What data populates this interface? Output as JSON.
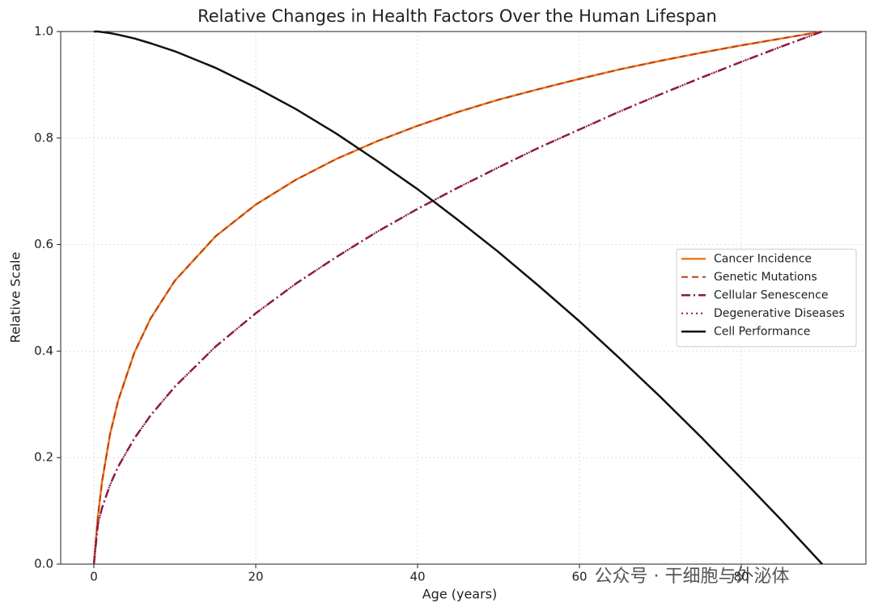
{
  "chart_data": {
    "type": "line",
    "title": "Relative Changes in Health Factors Over the Human Lifespan",
    "x_label": "Age (years)",
    "y_label": "Relative Scale",
    "watermark": "公众号 · 干细胞与外泌体",
    "x": [
      0,
      0.5,
      1,
      2,
      3,
      5,
      7,
      10,
      15,
      20,
      25,
      30,
      35,
      40,
      45,
      50,
      55,
      60,
      65,
      70,
      75,
      80,
      85,
      90
    ],
    "series": [
      {
        "name": "Cancer Incidence",
        "color": "#ee7a1f",
        "linestyle": "solid",
        "width": 2.5,
        "values": [
          0,
          0.09,
          0.154,
          0.244,
          0.307,
          0.397,
          0.461,
          0.532,
          0.615,
          0.675,
          0.722,
          0.761,
          0.794,
          0.823,
          0.849,
          0.872,
          0.892,
          0.911,
          0.929,
          0.945,
          0.96,
          0.974,
          0.987,
          1.0
        ]
      },
      {
        "name": "Genetic Mutations",
        "color": "#b8420f",
        "linestyle": "dashed",
        "width": 2,
        "values": [
          0,
          0.09,
          0.154,
          0.244,
          0.307,
          0.397,
          0.461,
          0.532,
          0.615,
          0.675,
          0.722,
          0.761,
          0.794,
          0.823,
          0.849,
          0.872,
          0.892,
          0.911,
          0.929,
          0.945,
          0.96,
          0.974,
          0.987,
          1.0
        ]
      },
      {
        "name": "Cellular Senescence",
        "color": "#8c1a3c",
        "linestyle": "dashdot",
        "width": 2.5,
        "values": [
          0,
          0.075,
          0.105,
          0.149,
          0.183,
          0.236,
          0.279,
          0.333,
          0.408,
          0.471,
          0.527,
          0.577,
          0.624,
          0.667,
          0.707,
          0.745,
          0.782,
          0.816,
          0.85,
          0.882,
          0.913,
          0.943,
          0.972,
          1.0
        ]
      },
      {
        "name": "Degenerative Diseases",
        "color": "#8b1a5e",
        "linestyle": "dotted",
        "width": 2,
        "values": [
          0,
          0.075,
          0.105,
          0.149,
          0.183,
          0.236,
          0.279,
          0.333,
          0.408,
          0.471,
          0.527,
          0.577,
          0.624,
          0.667,
          0.707,
          0.745,
          0.782,
          0.816,
          0.85,
          0.882,
          0.913,
          0.943,
          0.972,
          1.0
        ]
      },
      {
        "name": "Cell Performance",
        "color": "#111111",
        "linestyle": "solid",
        "width": 2.5,
        "values": [
          1.0,
          1.0,
          0.999,
          0.997,
          0.994,
          0.987,
          0.978,
          0.963,
          0.932,
          0.895,
          0.854,
          0.808,
          0.757,
          0.704,
          0.646,
          0.586,
          0.522,
          0.456,
          0.386,
          0.314,
          0.239,
          0.161,
          0.082,
          0
        ]
      }
    ],
    "xlim": [
      -4.1,
      95.4
    ],
    "ylim": [
      0,
      1
    ],
    "xticks": [
      0,
      20,
      40,
      60,
      80
    ],
    "yticks": [
      {
        "value": 0,
        "label": "0.0"
      },
      {
        "value": 0.2,
        "label": "0.2"
      },
      {
        "value": 0.4,
        "label": "0.4"
      },
      {
        "value": 0.6,
        "label": "0.6"
      },
      {
        "value": 0.8,
        "label": "0.8"
      },
      {
        "value": 1,
        "label": "1.0"
      }
    ],
    "grid": true,
    "legend": "center right"
  }
}
